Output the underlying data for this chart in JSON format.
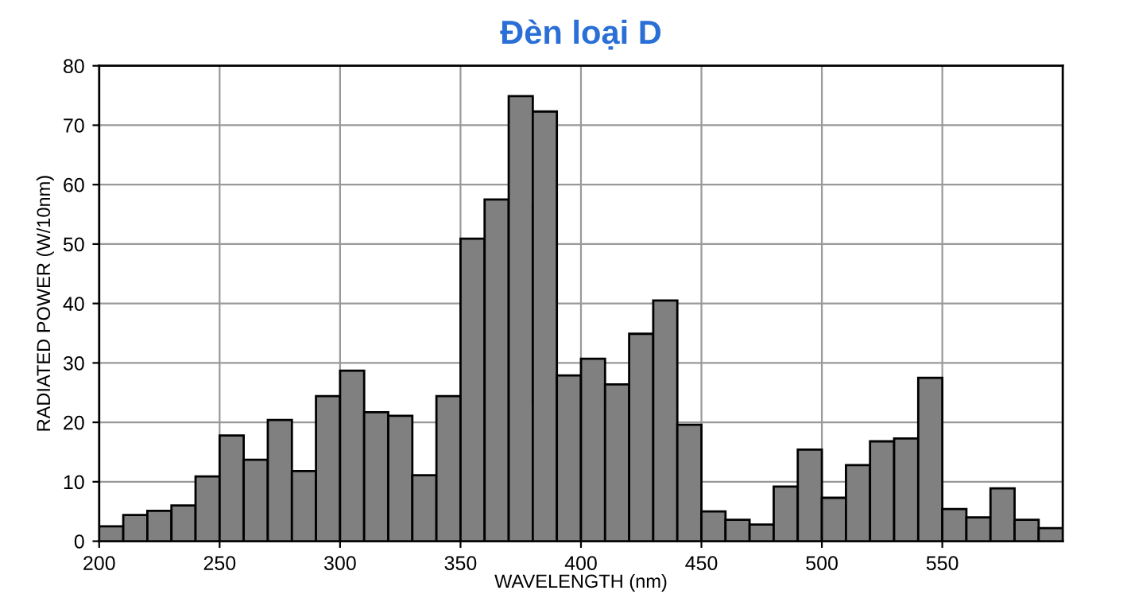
{
  "chart_data": {
    "type": "histogram",
    "title": "Đèn loại D",
    "xlabel": "WAVELENGTH (nm)",
    "ylabel": "RADIATED POWER (W/10nm)",
    "bins": [
      200,
      210,
      220,
      230,
      240,
      250,
      260,
      270,
      280,
      290,
      300,
      310,
      320,
      330,
      340,
      350,
      360,
      370,
      380,
      390,
      400,
      410,
      420,
      430,
      440,
      450,
      460,
      470,
      480,
      490,
      500,
      510,
      520,
      530,
      540,
      550,
      560,
      570,
      580,
      590,
      600
    ],
    "values": [
      2.5,
      4.4,
      5.1,
      6.0,
      10.9,
      17.8,
      13.7,
      20.4,
      11.8,
      24.4,
      28.7,
      21.7,
      21.1,
      11.1,
      24.4,
      50.9,
      57.5,
      74.9,
      72.3,
      27.9,
      30.7,
      26.4,
      34.9,
      40.5,
      19.6,
      5.0,
      3.6,
      2.8,
      9.2,
      15.4,
      7.3,
      12.8,
      16.8,
      17.3,
      27.5,
      5.4,
      4.0,
      8.9,
      3.6,
      2.2
    ],
    "color": "#808080",
    "xlim": [
      200,
      600
    ],
    "xticks": [
      200,
      250,
      300,
      350,
      400,
      450,
      500,
      550
    ],
    "ylim": [
      0,
      80
    ],
    "yticks": [
      0,
      10,
      20,
      30,
      40,
      50,
      60,
      70,
      80
    ],
    "grid": true
  }
}
